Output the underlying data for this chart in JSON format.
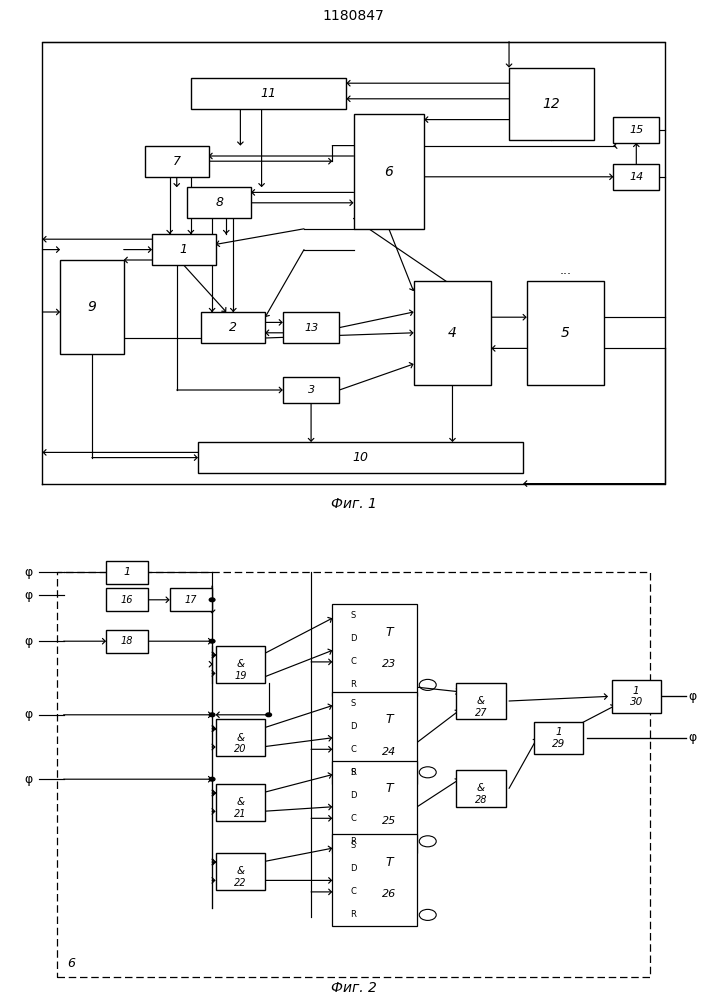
{
  "title": "1180847",
  "fig1_caption": "Фиг. 1",
  "fig2_caption": "Фиг. 2",
  "bg": "#ffffff"
}
